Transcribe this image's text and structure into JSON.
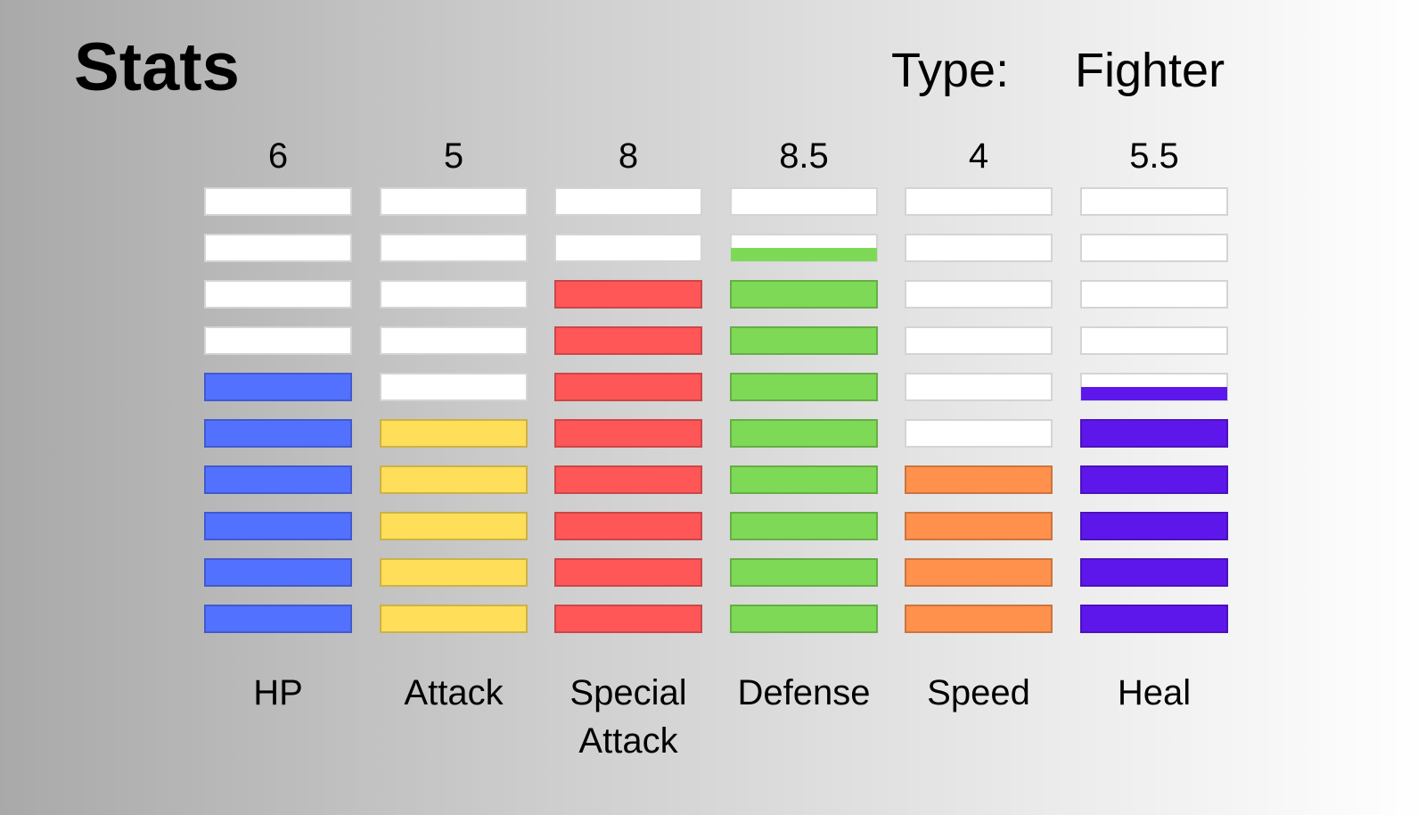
{
  "header": {
    "title": "Stats",
    "type_label": "Type:",
    "type_value": "Fighter"
  },
  "chart_data": {
    "type": "bar",
    "title": "Stats",
    "segments_per_bar": 10,
    "categories": [
      "HP",
      "Attack",
      "Special Attack",
      "Defense",
      "Speed",
      "Heal"
    ],
    "category_lines": [
      [
        "HP"
      ],
      [
        "Attack"
      ],
      [
        "Special",
        "Attack"
      ],
      [
        "Defense"
      ],
      [
        "Speed"
      ],
      [
        "Heal"
      ]
    ],
    "values": [
      6,
      5,
      8,
      8.5,
      4,
      5.5
    ],
    "value_labels": [
      "6",
      "5",
      "8",
      "8.5",
      "4",
      "5.5"
    ],
    "colors": [
      "#5271ff",
      "#ffde59",
      "#ff5757",
      "#7ed957",
      "#ff914d",
      "#5e17eb"
    ],
    "empty_color": "#ffffff",
    "ylim": [
      0,
      10
    ]
  }
}
